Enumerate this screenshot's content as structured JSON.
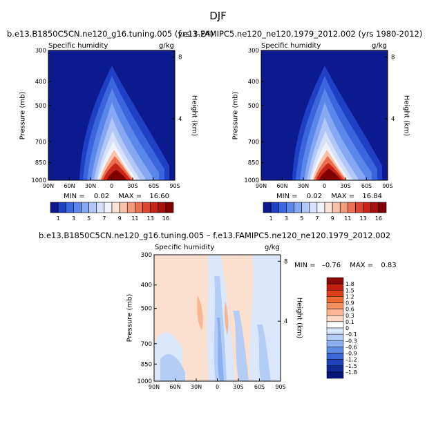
{
  "figure": {
    "title": "DJF"
  },
  "panels": [
    {
      "case_title": "b.e13.B1850C5CN.ne120_g16.tuning.005 (yrs 1-24)",
      "variable": "Specific humidity",
      "units": "g/kg",
      "ylabel": "Pressure (mb)",
      "y2label": "Height (km)",
      "min_label": "MIN =",
      "min_value": "0.02",
      "max_label": "MAX =",
      "max_value": "16.60"
    },
    {
      "case_title": "f.e13.FAMIPC5.ne120_ne120.1979_2012.002 (yrs 1980-2012)",
      "variable": "Specific humidity",
      "units": "g/kg",
      "ylabel": "Pressure (mb)",
      "y2label": "Height (km)",
      "min_label": "MIN =",
      "min_value": "0.02",
      "max_label": "MAX =",
      "max_value": "16.84"
    },
    {
      "case_title": "b.e13.B1850C5CN.ne120_g16.tuning.005 – f.e13.FAMIPC5.ne120_ne120.1979_2012.002",
      "variable": "Specific humidity",
      "units": "g/kg",
      "ylabel": "Pressure (mb)",
      "y2label": "Height (km)",
      "min_label": "MIN =",
      "min_value": "–0.76",
      "max_label": "MAX =",
      "max_value": "0.83"
    }
  ],
  "chart_data": [
    {
      "type": "heatmap",
      "xlabel": "",
      "ylabel": "Pressure (mb)",
      "x_ticks": [
        "90N",
        "60N",
        "30N",
        "0",
        "30S",
        "60S",
        "90S"
      ],
      "y_ticks": [
        "300",
        "400",
        "500",
        "700",
        "850",
        "1000"
      ],
      "y2_ticks": [
        "8",
        "4"
      ],
      "ylim": [
        1000,
        300
      ],
      "colorbar_labels": [
        "1",
        "3",
        "5",
        "7",
        "9",
        "11",
        "13",
        "16"
      ],
      "colorbar_colors": [
        "#0b1a8f",
        "#1f3fc4",
        "#3b65dd",
        "#5b86ea",
        "#86a8f2",
        "#b1c7f7",
        "#d6e2fb",
        "#f1f3fb",
        "#fbe3d6",
        "#f8c2a8",
        "#f39b7a",
        "#eb6f4f",
        "#df452d",
        "#c82418",
        "#a5110c",
        "#800000"
      ],
      "min": 0.02,
      "max": 16.6
    },
    {
      "type": "heatmap",
      "xlabel": "",
      "ylabel": "Pressure (mb)",
      "x_ticks": [
        "90N",
        "60N",
        "30N",
        "0",
        "30S",
        "60S",
        "90S"
      ],
      "y_ticks": [
        "300",
        "400",
        "500",
        "700",
        "850",
        "1000"
      ],
      "y2_ticks": [
        "8",
        "4"
      ],
      "ylim": [
        1000,
        300
      ],
      "colorbar_labels": [
        "1",
        "3",
        "5",
        "7",
        "9",
        "11",
        "13",
        "16"
      ],
      "colorbar_colors": [
        "#0b1a8f",
        "#1f3fc4",
        "#3b65dd",
        "#5b86ea",
        "#86a8f2",
        "#b1c7f7",
        "#d6e2fb",
        "#f1f3fb",
        "#fbe3d6",
        "#f8c2a8",
        "#f39b7a",
        "#eb6f4f",
        "#df452d",
        "#c82418",
        "#a5110c",
        "#800000"
      ],
      "min": 0.02,
      "max": 16.84
    },
    {
      "type": "heatmap",
      "xlabel": "",
      "ylabel": "Pressure (mb)",
      "x_ticks": [
        "90N",
        "60N",
        "30N",
        "0",
        "30S",
        "60S",
        "90S"
      ],
      "y_ticks": [
        "300",
        "400",
        "500",
        "700",
        "850",
        "1000"
      ],
      "y2_ticks": [
        "8",
        "4"
      ],
      "ylim": [
        1000,
        300
      ],
      "colorbar_labels": [
        "1.8",
        "1.5",
        "1.2",
        "0.9",
        "0.6",
        "0.3",
        "0.1",
        "0",
        "–0.1",
        "–0.3",
        "–0.6",
        "–0.9",
        "–1.2",
        "–1.5",
        "–1.8"
      ],
      "colorbar_colors": [
        "#8c0a0a",
        "#c1200f",
        "#e0401a",
        "#f06a32",
        "#f79060",
        "#fab592",
        "#fcd8c3",
        "#ffffff",
        "#d7e7fb",
        "#b3cdf6",
        "#8bb0f0",
        "#5f8de6",
        "#3a66d6",
        "#1f42b8",
        "#0f2a94",
        "#06157a"
      ],
      "min": -0.76,
      "max": 0.83
    }
  ]
}
